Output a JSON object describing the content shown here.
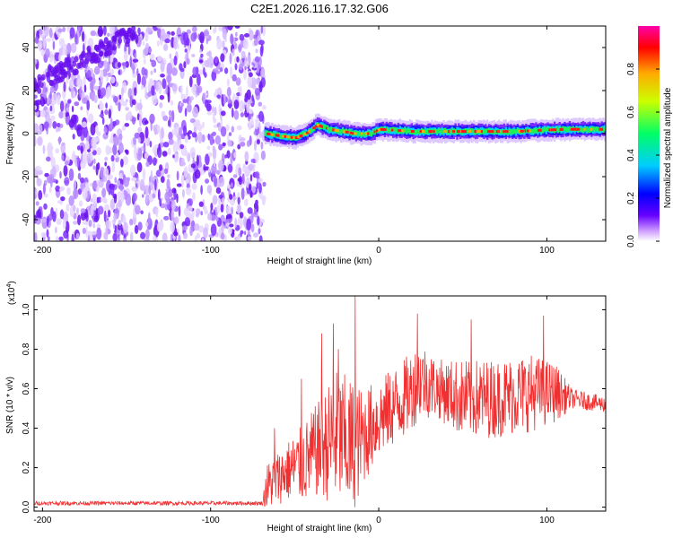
{
  "title": "C2E1.2026.116.17.32.G06",
  "chart_data": [
    {
      "type": "heatmap",
      "xlabel": "Height of straight line (km)",
      "ylabel": "Frequency (Hz)",
      "xlim": [
        -205,
        135
      ],
      "ylim": [
        -50,
        50
      ],
      "x_ticks": [
        -200,
        -100,
        0,
        100
      ],
      "y_ticks": [
        -40,
        -20,
        0,
        20,
        40
      ],
      "grid": false,
      "noise_region_x": [
        -205,
        -68
      ],
      "signal_track": [
        {
          "x": -68,
          "y": 0
        },
        {
          "x": -60,
          "y": -1
        },
        {
          "x": -50,
          "y": -2
        },
        {
          "x": -44,
          "y": 0
        },
        {
          "x": -37,
          "y": 4
        },
        {
          "x": -30,
          "y": 2
        },
        {
          "x": -22,
          "y": 1
        },
        {
          "x": -15,
          "y": 0
        },
        {
          "x": -5,
          "y": 0
        },
        {
          "x": 0,
          "y": 2
        },
        {
          "x": 20,
          "y": 1
        },
        {
          "x": 50,
          "y": 1
        },
        {
          "x": 80,
          "y": 1
        },
        {
          "x": 110,
          "y": 2
        },
        {
          "x": 135,
          "y": 2
        }
      ],
      "colorbar": {
        "label": "Normalized spectral amplitude",
        "range": [
          0,
          1
        ],
        "ticks": [
          0.0,
          0.2,
          0.4,
          0.6,
          0.8
        ],
        "colors": [
          "#ffffff",
          "#cc99ff",
          "#6600ff",
          "#0000ff",
          "#00ccff",
          "#00ff66",
          "#ccff00",
          "#ffaa00",
          "#ff0000",
          "#ff00aa"
        ]
      }
    },
    {
      "type": "line",
      "xlabel": "Height of straight line (km)",
      "ylabel": "SNR (10 * v/v)",
      "y_multiplier": "(x10",
      "y_multiplier_exp": "4",
      "y_multiplier_close": ")",
      "xlim": [
        -205,
        135
      ],
      "ylim": [
        -0.02,
        1.07
      ],
      "x_ticks": [
        -200,
        -100,
        0,
        100
      ],
      "y_ticks": [
        0.0,
        0.2,
        0.4,
        0.6,
        0.8,
        1.0
      ],
      "grid": false,
      "series": [
        {
          "color": "#f03030",
          "envelope": [
            {
              "x": -205,
              "base": 0.02,
              "amp": 0.01
            },
            {
              "x": -69,
              "base": 0.02,
              "amp": 0.01
            },
            {
              "x": -67,
              "base": 0.1,
              "amp": 0.12
            },
            {
              "x": -55,
              "base": 0.18,
              "amp": 0.15
            },
            {
              "x": -45,
              "base": 0.22,
              "amp": 0.2
            },
            {
              "x": -35,
              "base": 0.3,
              "amp": 0.25
            },
            {
              "x": -25,
              "base": 0.35,
              "amp": 0.35
            },
            {
              "x": -15,
              "base": 0.3,
              "amp": 0.35
            },
            {
              "x": -10,
              "base": 0.35,
              "amp": 0.25
            },
            {
              "x": 0,
              "base": 0.45,
              "amp": 0.2
            },
            {
              "x": 15,
              "base": 0.55,
              "amp": 0.2
            },
            {
              "x": 25,
              "base": 0.65,
              "amp": 0.2
            },
            {
              "x": 35,
              "base": 0.6,
              "amp": 0.15
            },
            {
              "x": 50,
              "base": 0.55,
              "amp": 0.2
            },
            {
              "x": 70,
              "base": 0.55,
              "amp": 0.2
            },
            {
              "x": 90,
              "base": 0.58,
              "amp": 0.2
            },
            {
              "x": 105,
              "base": 0.58,
              "amp": 0.15
            },
            {
              "x": 115,
              "base": 0.55,
              "amp": 0.05
            },
            {
              "x": 135,
              "base": 0.52,
              "amp": 0.04
            }
          ],
          "peaks": [
            {
              "x": -62,
              "y": 0.4
            },
            {
              "x": -46,
              "y": 0.65
            },
            {
              "x": -34,
              "y": 0.88
            },
            {
              "x": -27,
              "y": 0.93
            },
            {
              "x": -24,
              "y": 0.8
            },
            {
              "x": -14,
              "y": 1.07
            },
            {
              "x": 23,
              "y": 0.98
            },
            {
              "x": 55,
              "y": 0.95
            },
            {
              "x": 98,
              "y": 0.97
            }
          ]
        }
      ]
    }
  ]
}
